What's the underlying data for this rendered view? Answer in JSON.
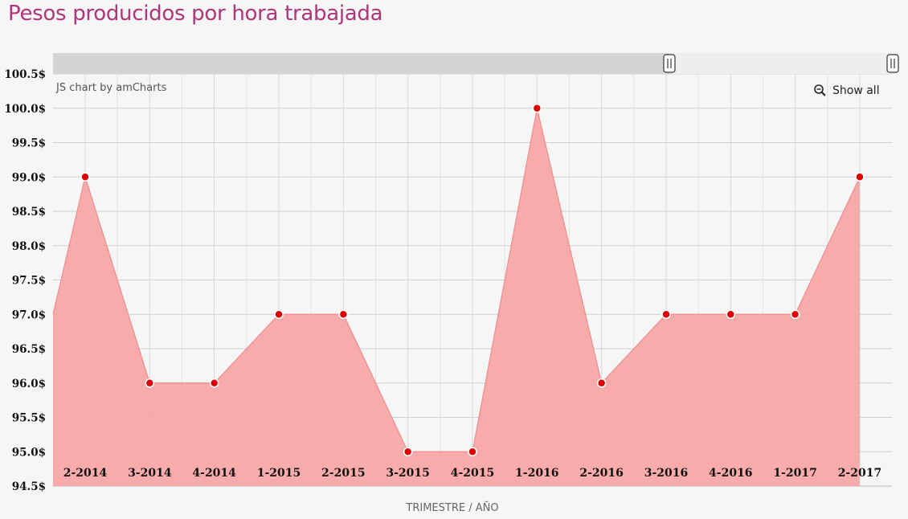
{
  "title": "Pesos producidos por hora trabajada",
  "credit": "JS chart by amCharts",
  "show_all_label": "Show all",
  "icons": {
    "zoom": "magnifier-minus-icon",
    "grip": "grip-lines-icon"
  },
  "colors": {
    "title": "#b0357a",
    "fill": "#f7a3a3",
    "line": "#f08c8c",
    "point": "#dd0000"
  },
  "chart_data": {
    "type": "area",
    "title": "Pesos producidos por hora trabajada",
    "xlabel": "TRIMESTRE / AÑO",
    "ylabel": "",
    "categories": [
      "2-2014",
      "3-2014",
      "4-2014",
      "1-2015",
      "2-2015",
      "3-2015",
      "4-2015",
      "1-2016",
      "2-2016",
      "3-2016",
      "4-2016",
      "1-2017",
      "2-2017"
    ],
    "values": [
      99.0,
      96.0,
      96.0,
      97.0,
      97.0,
      95.0,
      95.0,
      100.0,
      96.0,
      97.0,
      97.0,
      97.0,
      99.0
    ],
    "left_edge_value": 97.0,
    "ylim": [
      94.5,
      100.5
    ],
    "yticks": [
      "94.5$",
      "95.0$",
      "95.5$",
      "96.0$",
      "96.5$",
      "97.0$",
      "97.5$",
      "98.0$",
      "98.5$",
      "99.0$",
      "99.5$",
      "100.0$",
      "100.5$"
    ],
    "ytick_values": [
      94.5,
      95.0,
      95.5,
      96.0,
      96.5,
      97.0,
      97.5,
      98.0,
      98.5,
      99.0,
      99.5,
      100.0,
      100.5
    ],
    "grid": true,
    "scrollbar": {
      "selection_start": 0.0,
      "selection_end": 1.0
    }
  }
}
